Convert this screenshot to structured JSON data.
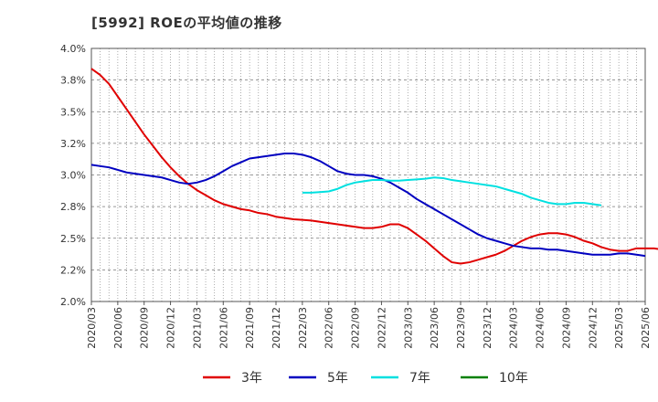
{
  "header": {
    "title": "[5992]  ROEの平均値の推移"
  },
  "chart_data": {
    "type": "line",
    "title": "[5992]  ROEの平均値の推移",
    "xlabel": "",
    "ylabel": "",
    "ylim": [
      2.0,
      4.0
    ],
    "y_ticks": [
      2.0,
      2.25,
      2.5,
      2.75,
      3.0,
      3.25,
      3.5,
      3.75,
      4.0
    ],
    "y_tick_labels": [
      "2.0%",
      "2.2%",
      "2.5%",
      "2.8%",
      "3.0%",
      "3.2%",
      "3.5%",
      "3.8%",
      "4.0%"
    ],
    "x_ticks": [
      "2020/03",
      "2020/06",
      "2020/09",
      "2020/12",
      "2021/03",
      "2021/06",
      "2021/09",
      "2021/12",
      "2022/03",
      "2022/06",
      "2022/09",
      "2022/12",
      "2023/03",
      "2023/06",
      "2023/09",
      "2023/12",
      "2024/03",
      "2024/06",
      "2024/09",
      "2024/12",
      "2025/03",
      "2025/06"
    ],
    "grid": true,
    "legend_position": "bottom",
    "series": [
      {
        "name": "3年",
        "color": "#e00000",
        "start_index": 0,
        "values": [
          3.84,
          3.79,
          3.72,
          3.62,
          3.52,
          3.42,
          3.32,
          3.23,
          3.14,
          3.06,
          2.99,
          2.93,
          2.88,
          2.84,
          2.8,
          2.77,
          2.75,
          2.73,
          2.72,
          2.7,
          2.69,
          2.67,
          2.66,
          2.65,
          2.645,
          2.64,
          2.63,
          2.62,
          2.61,
          2.6,
          2.59,
          2.58,
          2.58,
          2.59,
          2.61,
          2.61,
          2.58,
          2.53,
          2.48,
          2.42,
          2.36,
          2.31,
          2.3,
          2.31,
          2.33,
          2.35,
          2.37,
          2.4,
          2.44,
          2.48,
          2.51,
          2.53,
          2.54,
          2.54,
          2.53,
          2.51,
          2.48,
          2.46,
          2.43,
          2.41,
          2.4,
          2.4,
          2.42,
          2.42,
          2.42,
          2.41
        ]
      },
      {
        "name": "5年",
        "color": "#0000c0",
        "start_index": 0,
        "values": [
          3.08,
          3.07,
          3.06,
          3.04,
          3.02,
          3.01,
          3.0,
          2.99,
          2.98,
          2.96,
          2.94,
          2.93,
          2.94,
          2.96,
          2.99,
          3.03,
          3.07,
          3.1,
          3.13,
          3.14,
          3.15,
          3.16,
          3.17,
          3.17,
          3.16,
          3.14,
          3.11,
          3.07,
          3.03,
          3.01,
          3.0,
          3.0,
          2.99,
          2.97,
          2.94,
          2.9,
          2.86,
          2.81,
          2.77,
          2.73,
          2.69,
          2.65,
          2.61,
          2.57,
          2.53,
          2.5,
          2.48,
          2.46,
          2.44,
          2.43,
          2.42,
          2.42,
          2.41,
          2.41,
          2.4,
          2.39,
          2.38,
          2.37,
          2.37,
          2.37,
          2.38,
          2.38,
          2.37,
          2.36
        ]
      },
      {
        "name": "7年",
        "color": "#00e0e0",
        "start_index": 24,
        "values": [
          2.86,
          2.86,
          2.865,
          2.87,
          2.89,
          2.92,
          2.94,
          2.95,
          2.96,
          2.96,
          2.955,
          2.955,
          2.96,
          2.965,
          2.97,
          2.98,
          2.975,
          2.96,
          2.95,
          2.94,
          2.93,
          2.92,
          2.91,
          2.89,
          2.87,
          2.85,
          2.82,
          2.8,
          2.78,
          2.77,
          2.77,
          2.78,
          2.78,
          2.77,
          2.76
        ]
      },
      {
        "name": "10年",
        "color": "#008000",
        "start_index": 0,
        "values": []
      }
    ]
  }
}
